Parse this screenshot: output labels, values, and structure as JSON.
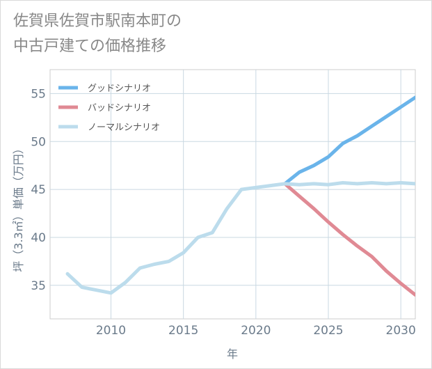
{
  "chart_data": {
    "type": "line",
    "title_lines": [
      "佐賀県佐賀市駅南本町の",
      "中古戸建ての価格推移"
    ],
    "xlabel": "年",
    "ylabel": "坪（3.3㎡）単価（万円）",
    "xlim": [
      2005.8,
      2031
    ],
    "ylim": [
      31.5,
      57.5
    ],
    "x_ticks": [
      2010,
      2015,
      2020,
      2025,
      2030
    ],
    "y_ticks": [
      35,
      40,
      45,
      50,
      55
    ],
    "series": [
      {
        "name": "グッドシナリオ",
        "color": "#6ab4ea",
        "x": [
          2022,
          2023,
          2024,
          2025,
          2026,
          2027,
          2028,
          2029,
          2030,
          2031
        ],
        "values": [
          45.6,
          46.8,
          47.5,
          48.4,
          49.8,
          50.6,
          51.6,
          52.6,
          53.6,
          54.6
        ]
      },
      {
        "name": "バッドシナリオ",
        "color": "#e08a94",
        "x": [
          2022,
          2023,
          2024,
          2025,
          2026,
          2027,
          2028,
          2029,
          2030,
          2031
        ],
        "values": [
          45.6,
          44.3,
          43.0,
          41.6,
          40.3,
          39.1,
          38.0,
          36.5,
          35.2,
          34.0
        ]
      },
      {
        "name": "ノーマルシナリオ",
        "color": "#bcdcec",
        "x": [
          2007,
          2008,
          2009,
          2010,
          2011,
          2012,
          2013,
          2014,
          2015,
          2016,
          2017,
          2018,
          2019,
          2020,
          2021,
          2022,
          2023,
          2024,
          2025,
          2026,
          2027,
          2028,
          2029,
          2030,
          2031
        ],
        "values": [
          36.2,
          34.8,
          34.5,
          34.2,
          35.3,
          36.8,
          37.2,
          37.5,
          38.4,
          40.0,
          40.5,
          43.0,
          45.0,
          45.2,
          45.4,
          45.6,
          45.5,
          45.6,
          45.5,
          45.7,
          45.6,
          45.7,
          45.6,
          45.7,
          45.6
        ]
      }
    ],
    "legend_position": "top-left",
    "grid": true
  }
}
